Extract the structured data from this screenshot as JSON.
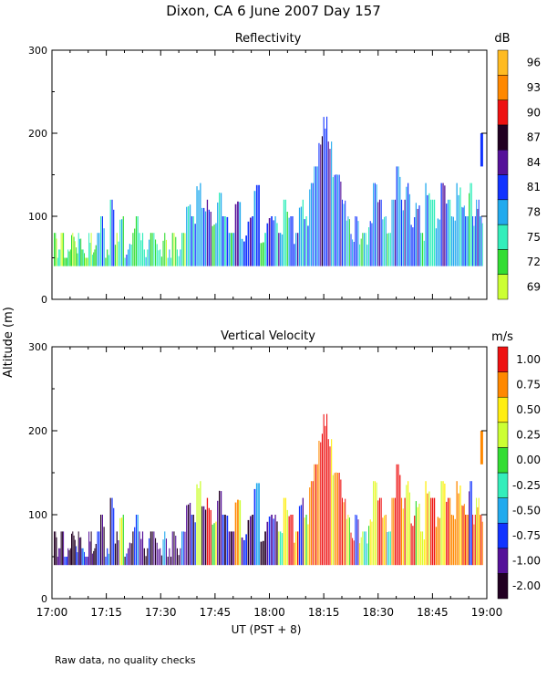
{
  "title": "Dixon, CA  6 June 2007  Day 157",
  "footnote": "Raw data, no quality checks",
  "y_axis_label": "Altitude (m)",
  "x_axis_label": "UT  (PST + 8)",
  "chart_data": [
    {
      "type": "heatmap",
      "title": "Reflectivity",
      "colorbar_unit": "dB",
      "x_tick_labels": [
        "17:00",
        "17:15",
        "17:30",
        "17:45",
        "18:00",
        "18:15",
        "18:30",
        "18:45",
        "19:00"
      ],
      "xlim_minutes": [
        0,
        120
      ],
      "y_ticks": [
        0,
        100,
        200,
        300
      ],
      "ylim": [
        0,
        300
      ],
      "colorbar": {
        "labels": [
          "69",
          "72",
          "75",
          "78",
          "81",
          "84",
          "87",
          "90",
          "93",
          "96"
        ],
        "colors": [
          "#ccff33",
          "#33dd33",
          "#33eebb",
          "#22aaee",
          "#1133ff",
          "#551199",
          "#220022",
          "#ee1111",
          "#ff8800",
          "#ffbb22"
        ]
      },
      "profiles": [
        {
          "start": 0.5,
          "end": 12.0,
          "base": 40,
          "tops": [
            80,
            60,
            80,
            40,
            60,
            80,
            70,
            80,
            60,
            40,
            80,
            60
          ],
          "classes": [
            1,
            2,
            0,
            1,
            2,
            1,
            0,
            2,
            1,
            0,
            1,
            2
          ]
        },
        {
          "start": 12.0,
          "end": 28.0,
          "base": 40,
          "tops": [
            80,
            100,
            60,
            120,
            80,
            100,
            60,
            80,
            100,
            80,
            60,
            80
          ],
          "classes": [
            2,
            3,
            2,
            3,
            1,
            2,
            3,
            2,
            1,
            2,
            3,
            2
          ]
        },
        {
          "start": 28.0,
          "end": 37.0,
          "base": 40,
          "tops": [
            80,
            60,
            80,
            60,
            80,
            60,
            80
          ],
          "classes": [
            1,
            2,
            0,
            2,
            1,
            2,
            1
          ]
        },
        {
          "start": 37.0,
          "end": 47.0,
          "base": 40,
          "tops": [
            120,
            100,
            140,
            110,
            120,
            100,
            130
          ],
          "classes": [
            2,
            3,
            4,
            3,
            4,
            2,
            3
          ]
        },
        {
          "start": 47.0,
          "end": 61.0,
          "base": 40,
          "tops": [
            100,
            80,
            120,
            80,
            100,
            140,
            80,
            100
          ],
          "classes": [
            3,
            2,
            4,
            3,
            4,
            3,
            2,
            4
          ]
        },
        {
          "start": 61.0,
          "end": 71.0,
          "base": 40,
          "tops": [
            100,
            80,
            120,
            100,
            80,
            120,
            100
          ],
          "classes": [
            3,
            4,
            2,
            3,
            4,
            2,
            3
          ]
        },
        {
          "start": 71.0,
          "end": 80.0,
          "base": 40,
          "tops": [
            140,
            160,
            200,
            220,
            190,
            160,
            150
          ],
          "classes": [
            3,
            4,
            5,
            4,
            4,
            3,
            4
          ]
        },
        {
          "start": 80.0,
          "end": 86.0,
          "base": 40,
          "tops": [
            120,
            100,
            80,
            100,
            80
          ],
          "classes": [
            3,
            2,
            3,
            4,
            2
          ]
        },
        {
          "start": 86.0,
          "end": 95.0,
          "base": 40,
          "tops": [
            80,
            100,
            140,
            120,
            100,
            80,
            120
          ],
          "classes": [
            2,
            3,
            4,
            4,
            3,
            2,
            4
          ]
        },
        {
          "start": 95.0,
          "end": 103.0,
          "base": 40,
          "tops": [
            160,
            120,
            140,
            100,
            120,
            80
          ],
          "classes": [
            3,
            4,
            4,
            3,
            4,
            2
          ]
        },
        {
          "start": 103.0,
          "end": 113.0,
          "base": 40,
          "tops": [
            140,
            120,
            100,
            140,
            120,
            100,
            140
          ],
          "classes": [
            3,
            2,
            3,
            4,
            3,
            2,
            3
          ]
        },
        {
          "start": 113.0,
          "end": 119.0,
          "base": 40,
          "tops": [
            120,
            100,
            140,
            100,
            120,
            100
          ],
          "classes": [
            4,
            3,
            2,
            3,
            4,
            3
          ]
        }
      ],
      "isolated_echo": {
        "time": 118.6,
        "bottom": 160,
        "top": 200,
        "class": 4
      }
    },
    {
      "type": "heatmap",
      "title": "Vertical Velocity",
      "colorbar_unit": "m/s",
      "x_tick_labels": [
        "17:00",
        "17:15",
        "17:30",
        "17:45",
        "18:00",
        "18:15",
        "18:30",
        "18:45",
        "19:00"
      ],
      "xlim_minutes": [
        0,
        120
      ],
      "y_ticks": [
        0,
        100,
        200,
        300
      ],
      "ylim": [
        0,
        300
      ],
      "colorbar": {
        "labels": [
          "-2.00",
          "-1.00",
          "-0.75",
          "-0.50",
          "-0.25",
          "0.00",
          "0.25",
          "0.50",
          "0.75",
          "1.00"
        ],
        "colors": [
          "#220022",
          "#551199",
          "#1133ff",
          "#22aaee",
          "#33eebb",
          "#33dd33",
          "#ccff33",
          "#ffee11",
          "#ff8800",
          "#ee1111"
        ]
      },
      "profiles": [
        {
          "start": 0.5,
          "end": 12.0,
          "base": 40,
          "tops": [
            80,
            60,
            80,
            40,
            60,
            80,
            70,
            80,
            60,
            40,
            80,
            60
          ],
          "classes": [
            0,
            1,
            0,
            2,
            1,
            0,
            1,
            0,
            2,
            1,
            0,
            1
          ]
        },
        {
          "start": 12.0,
          "end": 28.0,
          "base": 40,
          "tops": [
            80,
            100,
            60,
            120,
            80,
            100,
            60,
            80,
            100,
            80,
            60,
            80
          ],
          "classes": [
            1,
            0,
            3,
            1,
            0,
            6,
            1,
            0,
            2,
            1,
            0,
            1
          ]
        },
        {
          "start": 28.0,
          "end": 37.0,
          "base": 40,
          "tops": [
            80,
            60,
            80,
            60,
            80,
            60,
            80
          ],
          "classes": [
            0,
            1,
            2,
            0,
            1,
            0,
            2
          ]
        },
        {
          "start": 37.0,
          "end": 47.0,
          "base": 40,
          "tops": [
            120,
            100,
            140,
            110,
            120,
            100,
            130
          ],
          "classes": [
            0,
            1,
            7,
            0,
            9,
            6,
            1
          ]
        },
        {
          "start": 47.0,
          "end": 61.0,
          "base": 40,
          "tops": [
            100,
            80,
            120,
            80,
            100,
            140,
            80,
            100
          ],
          "classes": [
            1,
            0,
            7,
            1,
            0,
            2,
            0,
            1
          ]
        },
        {
          "start": 61.0,
          "end": 71.0,
          "base": 40,
          "tops": [
            100,
            80,
            120,
            100,
            80,
            120,
            100
          ],
          "classes": [
            1,
            5,
            7,
            9,
            8,
            1,
            6
          ]
        },
        {
          "start": 71.0,
          "end": 80.0,
          "base": 40,
          "tops": [
            140,
            160,
            200,
            220,
            190,
            160,
            150
          ],
          "classes": [
            8,
            9,
            9,
            9,
            8,
            7,
            9
          ]
        },
        {
          "start": 80.0,
          "end": 86.0,
          "base": 40,
          "tops": [
            120,
            100,
            80,
            100,
            80
          ],
          "classes": [
            8,
            6,
            9,
            2,
            7
          ]
        },
        {
          "start": 86.0,
          "end": 95.0,
          "base": 40,
          "tops": [
            80,
            100,
            140,
            120,
            100,
            80,
            120
          ],
          "classes": [
            3,
            6,
            7,
            9,
            8,
            4,
            9
          ]
        },
        {
          "start": 95.0,
          "end": 103.0,
          "base": 40,
          "tops": [
            160,
            120,
            140,
            100,
            120,
            80
          ],
          "classes": [
            9,
            8,
            7,
            9,
            6,
            7
          ]
        },
        {
          "start": 103.0,
          "end": 113.0,
          "base": 40,
          "tops": [
            140,
            120,
            100,
            140,
            120,
            100,
            140
          ],
          "classes": [
            7,
            9,
            8,
            6,
            9,
            7,
            8
          ]
        },
        {
          "start": 113.0,
          "end": 119.0,
          "base": 40,
          "tops": [
            120,
            100,
            140,
            100,
            120,
            100
          ],
          "classes": [
            9,
            8,
            2,
            9,
            7,
            9
          ]
        }
      ],
      "isolated_echo": {
        "time": 118.6,
        "bottom": 160,
        "top": 200,
        "class": 8
      }
    }
  ]
}
